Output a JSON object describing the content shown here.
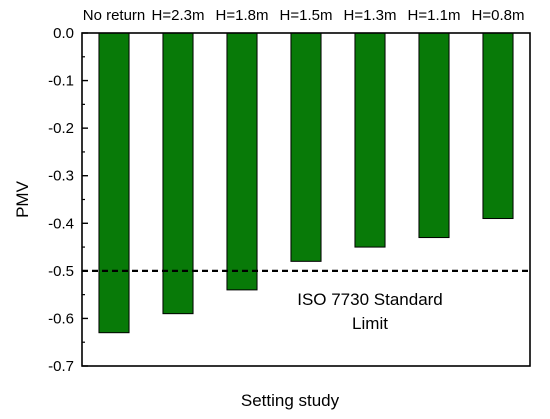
{
  "chart_data": {
    "type": "bar",
    "categories": [
      "No return",
      "H=2.3m",
      "H=1.8m",
      "H=1.5m",
      "H=1.3m",
      "H=1.1m",
      "H=0.8m"
    ],
    "values": [
      -0.63,
      -0.59,
      -0.54,
      -0.48,
      -0.45,
      -0.43,
      -0.39
    ],
    "xlabel": "Setting study",
    "ylabel": "PMV",
    "ylim": [
      -0.7,
      0.0
    ],
    "yticks": [
      "0.0",
      "-0.1",
      "-0.2",
      "-0.3",
      "-0.4",
      "-0.5",
      "-0.6",
      "-0.7"
    ],
    "ytick_values": [
      0.0,
      -0.1,
      -0.2,
      -0.3,
      -0.4,
      -0.5,
      -0.6,
      -0.7
    ],
    "category_axis_position": "top",
    "grid": false,
    "bar_color": "#087a08",
    "bar_edge_color": "#000000",
    "reference_line": {
      "value": -0.5,
      "style": "dashed",
      "label_line1": "ISO 7730 Standard",
      "label_line2": "Limit"
    }
  }
}
